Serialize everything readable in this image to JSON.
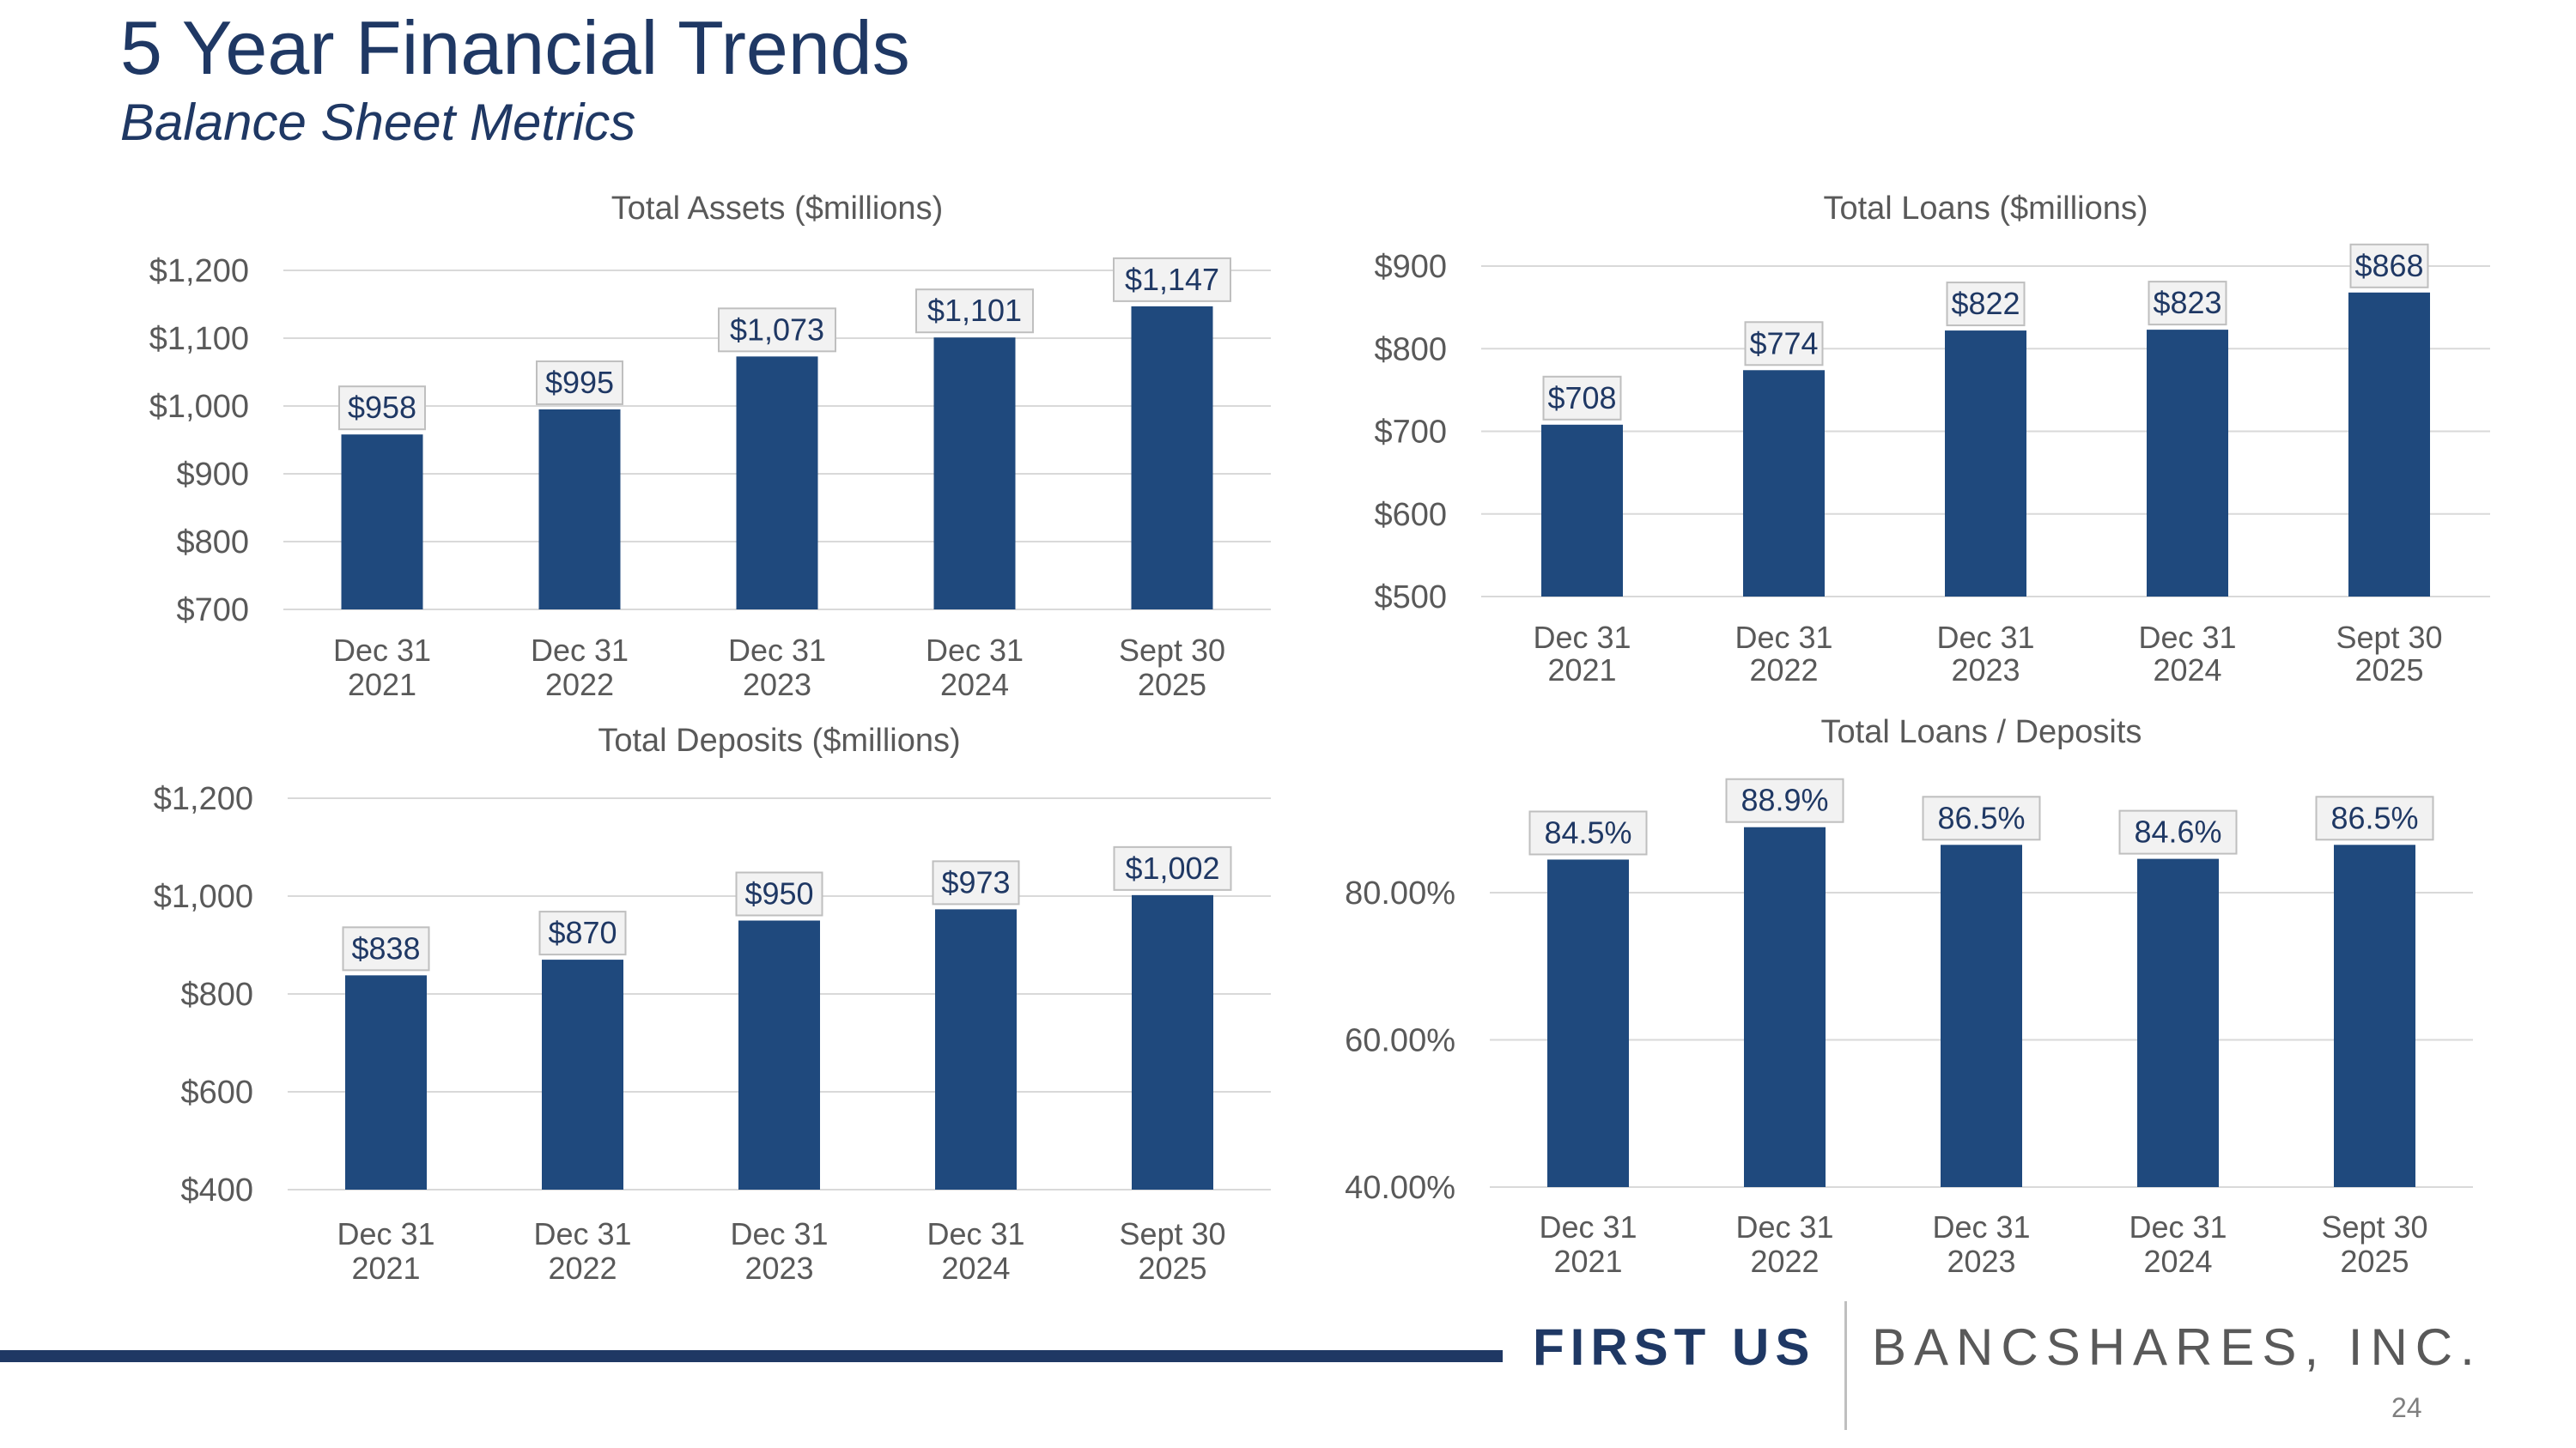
{
  "slide": {
    "title": "5 Year Financial Trends",
    "subtitle": "Balance Sheet Metrics",
    "page_number": "24"
  },
  "footer": {
    "logo_part1": "FIRST US",
    "logo_part2": "BANCSHARES, INC."
  },
  "colors": {
    "bar": "#1f497d",
    "title": "#1f3864",
    "label_box": "#f2f2f2"
  },
  "chart_data": [
    {
      "type": "bar",
      "title": "Total Assets ($millions)",
      "categories": [
        [
          "Dec 31",
          "2021"
        ],
        [
          "Dec 31",
          "2022"
        ],
        [
          "Dec 31",
          "2023"
        ],
        [
          "Dec 31",
          "2024"
        ],
        [
          "Sept 30",
          "2025"
        ]
      ],
      "values": [
        958,
        995,
        1073,
        1101,
        1147
      ],
      "value_labels": [
        "$958",
        "$995",
        "$1,073",
        "$1,101",
        "$1,147"
      ],
      "yticks": [
        700,
        800,
        900,
        1000,
        1100,
        1200
      ],
      "ytick_labels": [
        "$700",
        "$800",
        "$900",
        "$1,000",
        "$1,100",
        "$1,200"
      ],
      "ylim": [
        700,
        1200
      ],
      "grid": true
    },
    {
      "type": "bar",
      "title": "Total Loans ($millions)",
      "categories": [
        [
          "Dec 31",
          "2021"
        ],
        [
          "Dec 31",
          "2022"
        ],
        [
          "Dec 31",
          "2023"
        ],
        [
          "Dec 31",
          "2024"
        ],
        [
          "Sept 30",
          "2025"
        ]
      ],
      "values": [
        708,
        774,
        822,
        823,
        868
      ],
      "value_labels": [
        "$708",
        "$774",
        "$822",
        "$823",
        "$868"
      ],
      "yticks": [
        500,
        600,
        700,
        800,
        900
      ],
      "ytick_labels": [
        "$500",
        "$600",
        "$700",
        "$800",
        "$900"
      ],
      "ylim": [
        500,
        900
      ],
      "grid": true
    },
    {
      "type": "bar",
      "title": "Total Deposits ($millions)",
      "categories": [
        [
          "Dec 31",
          "2021"
        ],
        [
          "Dec 31",
          "2022"
        ],
        [
          "Dec 31",
          "2023"
        ],
        [
          "Dec 31",
          "2024"
        ],
        [
          "Sept 30",
          "2025"
        ]
      ],
      "values": [
        838,
        870,
        950,
        973,
        1002
      ],
      "value_labels": [
        "$838",
        "$870",
        "$950",
        "$973",
        "$1,002"
      ],
      "yticks": [
        400,
        600,
        800,
        1000,
        1200
      ],
      "ytick_labels": [
        "$400",
        "$600",
        "$800",
        "$1,000",
        "$1,200"
      ],
      "ylim": [
        400,
        1200
      ],
      "grid": true
    },
    {
      "type": "bar",
      "title": "Total Loans / Deposits",
      "categories": [
        [
          "Dec 31",
          "2021"
        ],
        [
          "Dec 31",
          "2022"
        ],
        [
          "Dec 31",
          "2023"
        ],
        [
          "Dec 31",
          "2024"
        ],
        [
          "Sept 30",
          "2025"
        ]
      ],
      "values": [
        84.5,
        88.9,
        86.5,
        84.6,
        86.5
      ],
      "value_labels": [
        "84.5%",
        "88.9%",
        "86.5%",
        "84.6%",
        "86.5%"
      ],
      "yticks": [
        40,
        60,
        80
      ],
      "ytick_labels": [
        "40.00%",
        "60.00%",
        "80.00%"
      ],
      "ylim": [
        40,
        94
      ],
      "grid": true
    }
  ]
}
